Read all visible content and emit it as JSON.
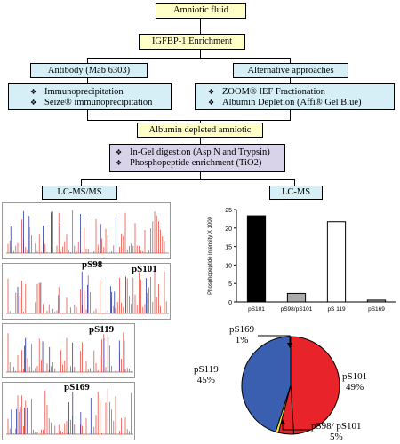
{
  "flow": {
    "top": "Amniotic fluid",
    "enrichment": "IGFBP-1 Enrichment",
    "antibody": "Antibody (Mab 6303)",
    "alternative": "Alternative approaches",
    "antibody_items": [
      "Immunoprecipitation",
      "Seize® immunoprecipitation"
    ],
    "alt_items": [
      "ZOOM® IEF Fractionation",
      "Albumin Depletion (Affi® Gel Blue)"
    ],
    "albumin": "Albumin depleted amniotic",
    "digest_items": [
      "In-Gel digestion  (Asp N and Trypsin)",
      "Phosphopeptide enrichment (TiO2)"
    ],
    "lcmsms": "LC-MS/MS",
    "lcms": "LC-MS"
  },
  "spectra": {
    "labels": [
      "pS98",
      "pS101",
      "pS119",
      "pS169"
    ]
  },
  "chart_data": [
    {
      "type": "bar",
      "categories": [
        "pS101",
        "pS98/pS101",
        "pS 119",
        "pS169"
      ],
      "values": [
        23.3,
        2.3,
        21.7,
        0.5
      ],
      "ylabel": "Phosphopeptide intensity X 1000",
      "ylim": [
        0,
        25
      ],
      "yticks": [
        0,
        5,
        10,
        15,
        20,
        25
      ],
      "fills": [
        "#000000",
        "#aaaaaa",
        "#ffffff",
        "#aaaaaa"
      ]
    },
    {
      "type": "pie",
      "labels": [
        "pS101",
        "pS98/ pS101",
        "pS169",
        "pS119"
      ],
      "values": [
        49,
        5,
        1,
        45
      ],
      "value_labels": [
        "49%",
        "5%",
        "1%",
        "45%"
      ],
      "colors": [
        "#e8232a",
        "#e8232a",
        "#f2ec2a",
        "#3a5fb0"
      ]
    }
  ]
}
